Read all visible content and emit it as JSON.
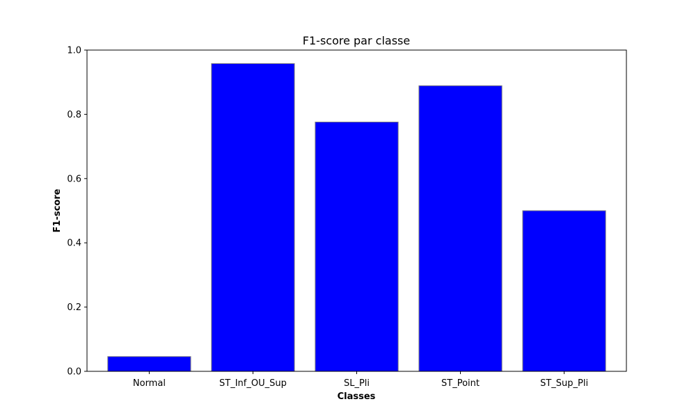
{
  "chart_data": {
    "type": "bar",
    "title": "F1-score par classe",
    "xlabel": "Classes",
    "ylabel": "F1-score",
    "categories": [
      "Normal",
      "ST_Inf_OU_Sup",
      "SL_Pli",
      "ST_Point",
      "ST_Sup_Pli"
    ],
    "values": [
      0.046,
      0.958,
      0.776,
      0.889,
      0.5
    ],
    "ylim": [
      0,
      1.0
    ],
    "yticks": [
      0.0,
      0.2,
      0.4,
      0.6,
      0.8,
      1.0
    ],
    "ytick_labels": [
      "0.0",
      "0.2",
      "0.4",
      "0.6",
      "0.8",
      "1.0"
    ],
    "grid": false,
    "legend": "none",
    "bar_color": "#0000ff",
    "bar_edge_color": "#808080"
  }
}
